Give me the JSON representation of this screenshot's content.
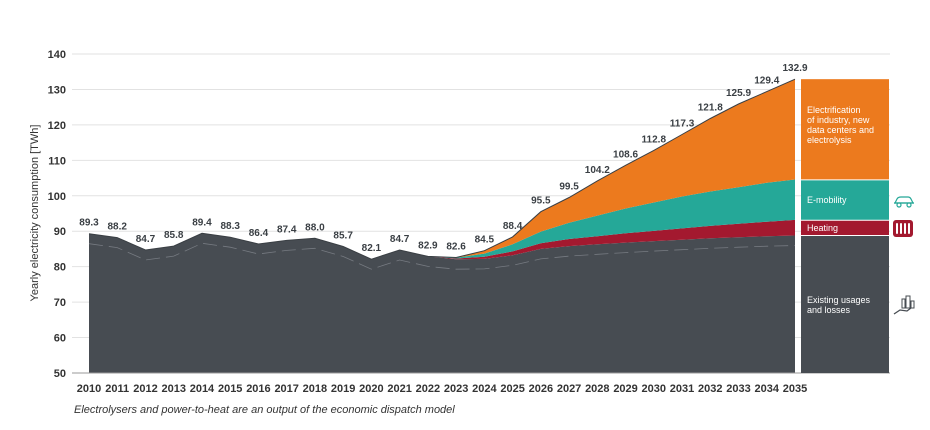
{
  "chart_data": {
    "type": "area",
    "ylabel": "Yearly electricity consumption [TWh]",
    "ylim": [
      50,
      140
    ],
    "yticks": [
      50,
      60,
      70,
      80,
      90,
      100,
      110,
      120,
      130,
      140
    ],
    "grid": true,
    "x": [
      "2010",
      "2011",
      "2012",
      "2013",
      "2014",
      "2015",
      "2016",
      "2017",
      "2018",
      "2019",
      "2020",
      "2021",
      "2022",
      "2023",
      "2024",
      "2025",
      "2026",
      "2027",
      "2028",
      "2029",
      "2030",
      "2031",
      "2032",
      "2033",
      "2034",
      "2035"
    ],
    "totals": [
      89.3,
      88.2,
      84.7,
      85.8,
      89.4,
      88.3,
      86.4,
      87.4,
      88.0,
      85.7,
      82.1,
      84.7,
      82.9,
      82.6,
      84.5,
      88.4,
      95.5,
      99.5,
      104.2,
      108.6,
      112.8,
      117.3,
      121.8,
      125.9,
      129.4,
      132.9
    ],
    "total_labels": [
      "89.3",
      "88.2",
      "84.7",
      "85.8",
      "89.4",
      "88.3",
      "86.4",
      "87.4",
      "88.0",
      "85.7",
      "82.1",
      "84.7",
      "82.9",
      "82.6",
      "84.5",
      "88.4",
      "95.5",
      "99.5",
      "104.2",
      "108.6",
      "112.8",
      "117.3",
      "121.8",
      "125.9",
      "129.4",
      "132.9"
    ],
    "series": [
      {
        "name": "Existing usages and losses",
        "color": "#474c52",
        "values": [
          89.3,
          88.2,
          84.7,
          85.8,
          89.4,
          88.3,
          86.4,
          87.4,
          88.0,
          85.7,
          82.1,
          84.7,
          82.9,
          82.1,
          82.2,
          83.2,
          85.0,
          85.8,
          86.3,
          86.8,
          87.2,
          87.6,
          88.0,
          88.3,
          88.6,
          88.8
        ]
      },
      {
        "name": "Heating",
        "color": "#a3192f",
        "values": [
          0,
          0,
          0,
          0,
          0,
          0,
          0,
          0,
          0,
          0,
          0,
          0,
          0,
          0.2,
          0.6,
          1.1,
          1.6,
          2.0,
          2.3,
          2.6,
          2.9,
          3.2,
          3.5,
          3.8,
          4.1,
          4.4
        ]
      },
      {
        "name": "E-mobility",
        "color": "#25a898",
        "values": [
          0,
          0,
          0,
          0,
          0,
          0,
          0,
          0,
          0,
          0,
          0,
          0,
          0,
          0.2,
          0.9,
          2.0,
          3.3,
          4.6,
          5.8,
          7.0,
          8.0,
          9.0,
          9.7,
          10.3,
          11.0,
          11.4
        ]
      },
      {
        "name": "Electrification of industry, new data centers and electrolysis",
        "color": "#ec7a1e",
        "values": [
          0,
          0,
          0,
          0,
          0,
          0,
          0,
          0,
          0,
          0,
          0,
          0,
          0,
          0.1,
          0.8,
          2.1,
          5.6,
          7.1,
          9.8,
          12.2,
          14.7,
          17.5,
          20.6,
          23.5,
          25.7,
          28.3
        ]
      }
    ],
    "legend_stack": {
      "industry": {
        "label_lines": [
          "Electrification",
          "of industry, new",
          "data centers and",
          "electrolysis"
        ],
        "top": 132.9,
        "bottom": 104.5
      },
      "emobility": {
        "label": "E-mobility",
        "top": 104.5,
        "bottom": 93.1
      },
      "heating": {
        "label": "Heating",
        "top": 93.1,
        "bottom": 88.8
      },
      "existing": {
        "label_lines": [
          "Existing usages",
          "and losses"
        ],
        "top": 88.8,
        "bottom": 50
      }
    },
    "footnote": "Electrolysers and power-to-heat are an output of the economic dispatch model"
  },
  "icons": {
    "emobility": "car-icon",
    "heating": "radiator-icon",
    "existing": "hand-building-icon",
    "colors": {
      "emobility": "#25a898",
      "heating": "#a3192f",
      "existing": "#474c52"
    }
  }
}
